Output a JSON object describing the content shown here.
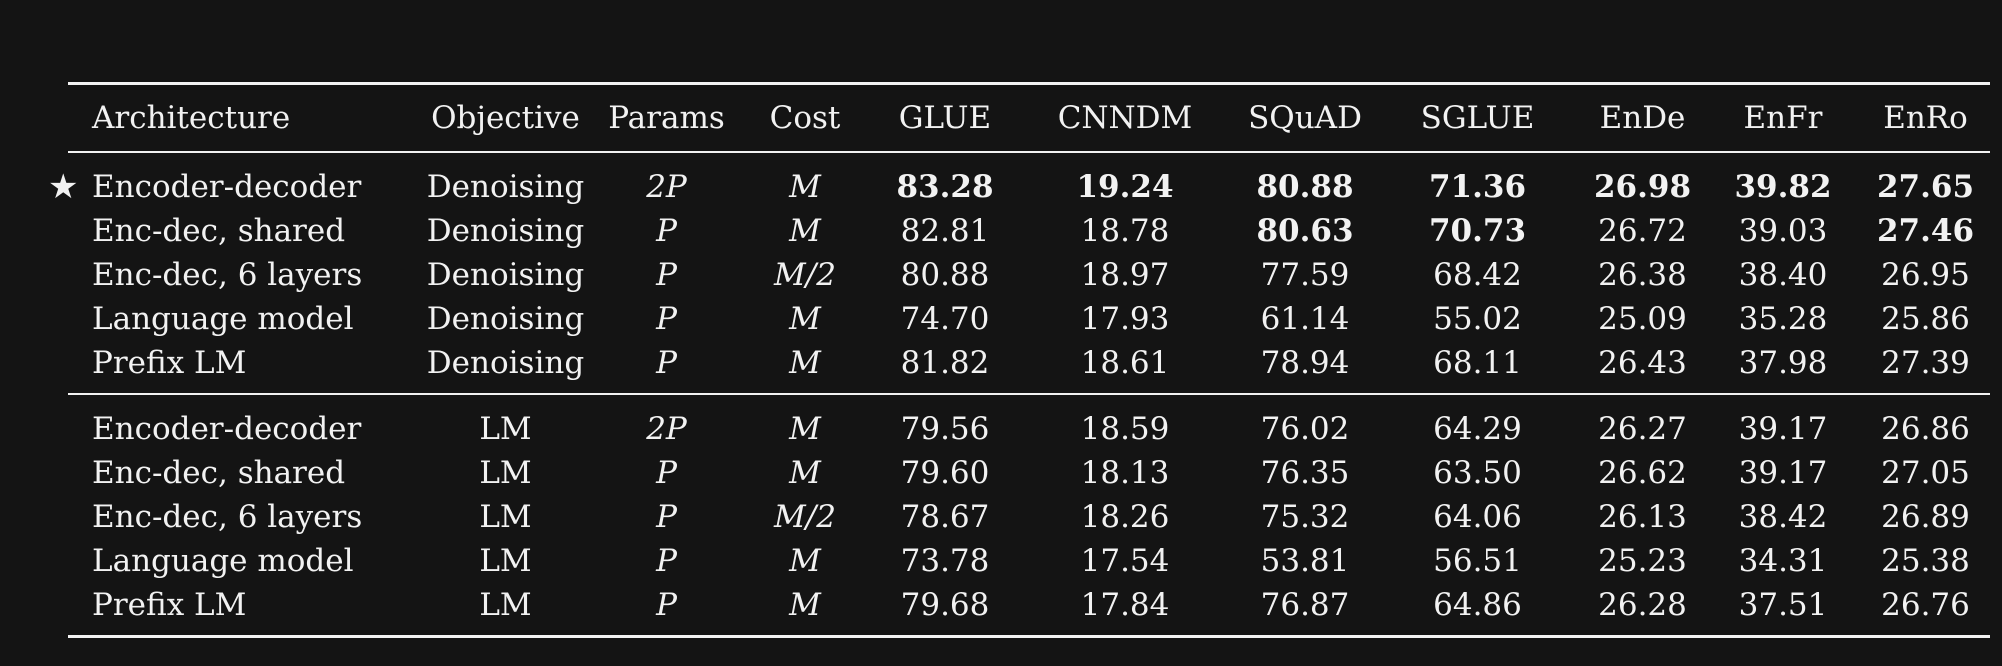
{
  "headers": [
    "Architecture",
    "Objective",
    "Params",
    "Cost",
    "GLUE",
    "CNNDM",
    "SQuAD",
    "SGLUE",
    "EnDe",
    "EnFr",
    "EnRo"
  ],
  "star": "★",
  "block1": [
    {
      "arch": "Encoder-decoder",
      "obj": "Denoising",
      "params": "2P",
      "cost": "M",
      "glue": "83.28",
      "cnndm": "19.24",
      "squad": "80.88",
      "sglue": "71.36",
      "ende": "26.98",
      "enfr": "39.82",
      "enro": "27.65"
    },
    {
      "arch": "Enc-dec, shared",
      "obj": "Denoising",
      "params": "P",
      "cost": "M",
      "glue": "82.81",
      "cnndm": "18.78",
      "squad": "80.63",
      "sglue": "70.73",
      "ende": "26.72",
      "enfr": "39.03",
      "enro": "27.46"
    },
    {
      "arch": "Enc-dec, 6 layers",
      "obj": "Denoising",
      "params": "P",
      "cost": "M/2",
      "glue": "80.88",
      "cnndm": "18.97",
      "squad": "77.59",
      "sglue": "68.42",
      "ende": "26.38",
      "enfr": "38.40",
      "enro": "26.95"
    },
    {
      "arch": "Language model",
      "obj": "Denoising",
      "params": "P",
      "cost": "M",
      "glue": "74.70",
      "cnndm": "17.93",
      "squad": "61.14",
      "sglue": "55.02",
      "ende": "25.09",
      "enfr": "35.28",
      "enro": "25.86"
    },
    {
      "arch": "Prefix LM",
      "obj": "Denoising",
      "params": "P",
      "cost": "M",
      "glue": "81.82",
      "cnndm": "18.61",
      "squad": "78.94",
      "sglue": "68.11",
      "ende": "26.43",
      "enfr": "37.98",
      "enro": "27.39"
    }
  ],
  "block2": [
    {
      "arch": "Encoder-decoder",
      "obj": "LM",
      "params": "2P",
      "cost": "M",
      "glue": "79.56",
      "cnndm": "18.59",
      "squad": "76.02",
      "sglue": "64.29",
      "ende": "26.27",
      "enfr": "39.17",
      "enro": "26.86"
    },
    {
      "arch": "Enc-dec, shared",
      "obj": "LM",
      "params": "P",
      "cost": "M",
      "glue": "79.60",
      "cnndm": "18.13",
      "squad": "76.35",
      "sglue": "63.50",
      "ende": "26.62",
      "enfr": "39.17",
      "enro": "27.05"
    },
    {
      "arch": "Enc-dec, 6 layers",
      "obj": "LM",
      "params": "P",
      "cost": "M/2",
      "glue": "78.67",
      "cnndm": "18.26",
      "squad": "75.32",
      "sglue": "64.06",
      "ende": "26.13",
      "enfr": "38.42",
      "enro": "26.89"
    },
    {
      "arch": "Language model",
      "obj": "LM",
      "params": "P",
      "cost": "M",
      "glue": "73.78",
      "cnndm": "17.54",
      "squad": "53.81",
      "sglue": "56.51",
      "ende": "25.23",
      "enfr": "34.31",
      "enro": "25.38"
    },
    {
      "arch": "Prefix LM",
      "obj": "LM",
      "params": "P",
      "cost": "M",
      "glue": "79.68",
      "cnndm": "17.84",
      "squad": "76.87",
      "sglue": "64.86",
      "ende": "26.28",
      "enfr": "37.51",
      "enro": "26.76"
    }
  ]
}
